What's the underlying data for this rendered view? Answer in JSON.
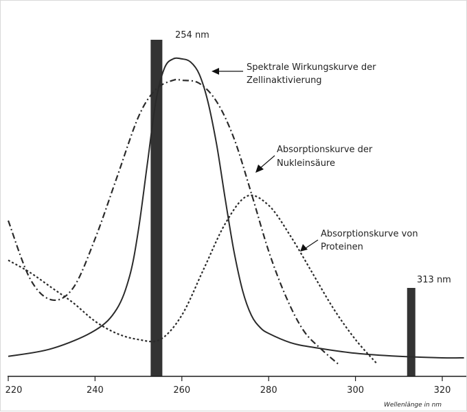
{
  "chart_data": {
    "type": "line",
    "title": "",
    "xlabel": "Wellenlänge in nm",
    "ylabel": "",
    "xlim": [
      220,
      325
    ],
    "ylim": [
      0,
      1
    ],
    "xticks": [
      "220",
      "240",
      "260",
      "280",
      "300",
      "320"
    ],
    "grid": false,
    "legend": "none",
    "bars": [
      {
        "x": 254,
        "value": 1.0,
        "label": "254 nm"
      },
      {
        "x": 313,
        "value": 0.26,
        "label": "313 nm"
      }
    ],
    "series": [
      {
        "name": "Spektrale Wirkungskurve der Zellinaktivierung",
        "style": "solid",
        "x": [
          220,
          230,
          240,
          245,
          248,
          250,
          252,
          254,
          256,
          258,
          260,
          262,
          264,
          266,
          268,
          270,
          272,
          274,
          276,
          278,
          280,
          285,
          290,
          300,
          310,
          320,
          325
        ],
        "y": [
          0.005,
          0.03,
          0.09,
          0.16,
          0.27,
          0.42,
          0.63,
          0.84,
          0.95,
          0.98,
          0.98,
          0.97,
          0.93,
          0.84,
          0.7,
          0.52,
          0.35,
          0.22,
          0.14,
          0.1,
          0.08,
          0.05,
          0.035,
          0.015,
          0.005,
          0.0,
          0.0
        ]
      },
      {
        "name": "Absorptionskurve der Nukleinsäure",
        "style": "dash-dot",
        "x": [
          220,
          225,
          230,
          235,
          240,
          245,
          250,
          254,
          258,
          260,
          264,
          268,
          272,
          276,
          280,
          284,
          288,
          292,
          296
        ],
        "y": [
          0.45,
          0.26,
          0.19,
          0.23,
          0.39,
          0.59,
          0.79,
          0.88,
          0.91,
          0.91,
          0.9,
          0.84,
          0.72,
          0.54,
          0.35,
          0.2,
          0.09,
          0.03,
          -0.02
        ]
      },
      {
        "name": "Absorptionskurve von Proteinen",
        "style": "dotted",
        "x": [
          220,
          225,
          230,
          235,
          240,
          245,
          250,
          255,
          260,
          265,
          270,
          275,
          280,
          285,
          290,
          295,
          300,
          305
        ],
        "y": [
          0.32,
          0.28,
          0.23,
          0.18,
          0.12,
          0.08,
          0.06,
          0.06,
          0.14,
          0.29,
          0.44,
          0.53,
          0.5,
          0.4,
          0.28,
          0.16,
          0.06,
          -0.02
        ]
      }
    ],
    "annotations": [
      {
        "text_lines": [
          "Spektrale Wirkungskurve der",
          "Zellinaktivierung"
        ]
      },
      {
        "text_lines": [
          "Absorptionskurve der",
          "Nukleinsäure"
        ]
      },
      {
        "text_lines": [
          "Absorptionskurve von",
          "Proteinen"
        ]
      }
    ]
  }
}
